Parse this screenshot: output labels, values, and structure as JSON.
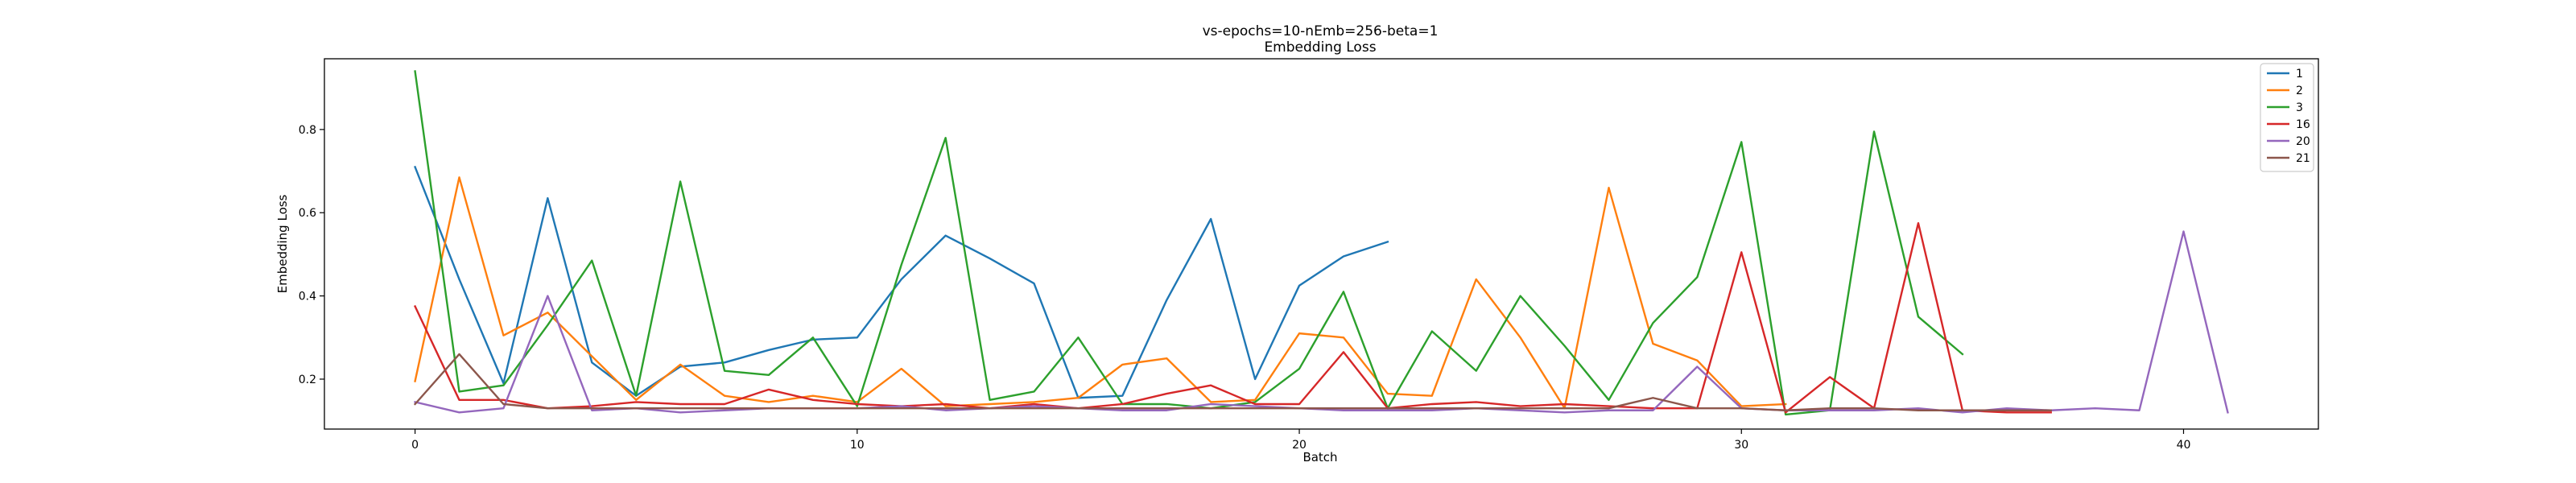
{
  "chart_data": {
    "type": "line",
    "title": "vs-epochs=10-nEmb=256-beta=1",
    "subtitle": "Embedding Loss",
    "xlabel": "Batch",
    "ylabel": "Embedding Loss",
    "xlim": [
      -2.05,
      43.05
    ],
    "ylim": [
      0.08,
      0.97
    ],
    "xticks": [
      0,
      10,
      20,
      30,
      40
    ],
    "yticks": [
      0.2,
      0.4,
      0.6,
      0.8
    ],
    "grid": false,
    "legend_position": "top-right",
    "series": [
      {
        "name": "1",
        "color": "#1f77b4",
        "y": [
          0.71,
          0.44,
          0.19,
          0.635,
          0.24,
          0.16,
          0.23,
          0.24,
          0.27,
          0.295,
          0.3,
          0.44,
          0.545,
          0.49,
          0.43,
          0.155,
          0.16,
          0.39,
          0.585,
          0.2,
          0.425,
          0.495,
          0.53
        ]
      },
      {
        "name": "2",
        "color": "#ff7f0e",
        "y": [
          0.195,
          0.685,
          0.305,
          0.36,
          0.255,
          0.15,
          0.235,
          0.16,
          0.145,
          0.16,
          0.145,
          0.225,
          0.135,
          0.14,
          0.145,
          0.155,
          0.235,
          0.25,
          0.145,
          0.15,
          0.31,
          0.3,
          0.165,
          0.16,
          0.44,
          0.3,
          0.13,
          0.66,
          0.285,
          0.245,
          0.135,
          0.14
        ]
      },
      {
        "name": "3",
        "color": "#2ca02c",
        "y": [
          0.94,
          0.17,
          0.185,
          0.33,
          0.485,
          0.16,
          0.675,
          0.22,
          0.21,
          0.3,
          0.135,
          0.475,
          0.78,
          0.15,
          0.17,
          0.3,
          0.14,
          0.14,
          0.13,
          0.145,
          0.225,
          0.41,
          0.13,
          0.315,
          0.22,
          0.4,
          0.28,
          0.15,
          0.335,
          0.445,
          0.77,
          0.115,
          0.125,
          0.795,
          0.35,
          0.26
        ]
      },
      {
        "name": "16",
        "color": "#d62728",
        "y": [
          0.375,
          0.15,
          0.15,
          0.13,
          0.135,
          0.145,
          0.14,
          0.14,
          0.175,
          0.15,
          0.14,
          0.135,
          0.14,
          0.13,
          0.14,
          0.13,
          0.14,
          0.165,
          0.185,
          0.14,
          0.14,
          0.265,
          0.13,
          0.14,
          0.145,
          0.135,
          0.14,
          0.135,
          0.13,
          0.13,
          0.505,
          0.12,
          0.205,
          0.13,
          0.575,
          0.125,
          0.12,
          0.12
        ]
      },
      {
        "name": "20",
        "color": "#9467bd",
        "y": [
          0.145,
          0.12,
          0.13,
          0.4,
          0.125,
          0.13,
          0.12,
          0.125,
          0.13,
          0.13,
          0.13,
          0.135,
          0.125,
          0.13,
          0.135,
          0.13,
          0.125,
          0.125,
          0.14,
          0.135,
          0.13,
          0.125,
          0.125,
          0.125,
          0.13,
          0.125,
          0.12,
          0.125,
          0.125,
          0.23,
          0.13,
          0.125,
          0.125,
          0.125,
          0.13,
          0.12,
          0.13,
          0.125,
          0.13,
          0.125,
          0.555,
          0.12
        ]
      },
      {
        "name": "21",
        "color": "#8c564b",
        "y": [
          0.14,
          0.26,
          0.14,
          0.13,
          0.13,
          0.13,
          0.13,
          0.13,
          0.13,
          0.13,
          0.13,
          0.13,
          0.13,
          0.13,
          0.13,
          0.13,
          0.13,
          0.13,
          0.13,
          0.13,
          0.13,
          0.13,
          0.13,
          0.13,
          0.13,
          0.13,
          0.13,
          0.13,
          0.155,
          0.13,
          0.13,
          0.125,
          0.13,
          0.13,
          0.125,
          0.125,
          0.125,
          0.125
        ]
      }
    ]
  }
}
